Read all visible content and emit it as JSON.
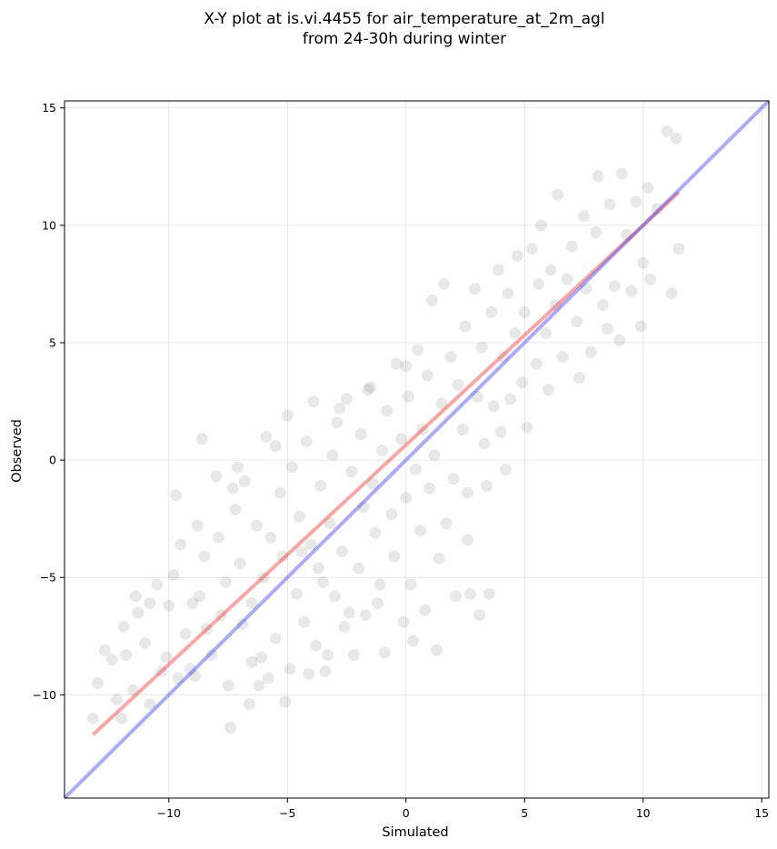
{
  "chart_data": {
    "type": "scatter",
    "title": "X-Y plot at is.vi.4455 for air_temperature_at_2m_agl",
    "subtitle": "from 24-30h during winter",
    "xlabel": "Simulated",
    "ylabel": "Observed",
    "xlim": [
      -14.4,
      15.3
    ],
    "ylim": [
      -14.4,
      15.3
    ],
    "xticks": [
      -10,
      -5,
      0,
      5,
      10,
      15
    ],
    "yticks": [
      -10,
      -5,
      0,
      5,
      10,
      15
    ],
    "xtick_labels": [
      "−10",
      "−5",
      "0",
      "5",
      "10",
      "15"
    ],
    "ytick_labels": [
      "−10",
      "−5",
      "0",
      "5",
      "10",
      "15"
    ],
    "grid": true,
    "marker_color": "#000000",
    "marker_opacity": 0.09,
    "points": [
      [
        -13.2,
        -11.0
      ],
      [
        -13.0,
        -9.5
      ],
      [
        -12.4,
        -8.5
      ],
      [
        -12.2,
        -10.2
      ],
      [
        -12.0,
        -11.0
      ],
      [
        -11.8,
        -8.3
      ],
      [
        -11.5,
        -9.8
      ],
      [
        -11.3,
        -6.5
      ],
      [
        -11.0,
        -7.8
      ],
      [
        -10.8,
        -10.4
      ],
      [
        -10.5,
        -5.3
      ],
      [
        -10.3,
        -9.0
      ],
      [
        -10.0,
        -6.2
      ],
      [
        -9.8,
        -4.9
      ],
      [
        -9.7,
        -1.5
      ],
      [
        -9.5,
        -3.6
      ],
      [
        -9.3,
        -7.4
      ],
      [
        -9.1,
        -8.9
      ],
      [
        -9.0,
        -6.1
      ],
      [
        -8.8,
        -2.8
      ],
      [
        -8.7,
        -5.8
      ],
      [
        -8.5,
        -4.1
      ],
      [
        -8.4,
        -7.2
      ],
      [
        -8.2,
        -8.3
      ],
      [
        -8.0,
        -0.7
      ],
      [
        -7.9,
        -3.3
      ],
      [
        -7.8,
        -6.6
      ],
      [
        -7.6,
        -5.2
      ],
      [
        -7.5,
        -9.6
      ],
      [
        -7.4,
        -11.4
      ],
      [
        -7.2,
        -2.1
      ],
      [
        -7.0,
        -4.4
      ],
      [
        -6.9,
        -7.0
      ],
      [
        -6.8,
        -0.9
      ],
      [
        -6.6,
        -10.4
      ],
      [
        -6.5,
        -6.1
      ],
      [
        -6.3,
        -2.8
      ],
      [
        -6.1,
        -8.4
      ],
      [
        -6.0,
        -5.0
      ],
      [
        -5.9,
        1.0
      ],
      [
        -5.7,
        -3.3
      ],
      [
        -5.5,
        -7.6
      ],
      [
        -5.3,
        -1.4
      ],
      [
        -5.2,
        -4.1
      ],
      [
        -5.1,
        -10.3
      ],
      [
        -5.0,
        1.9
      ],
      [
        -4.9,
        -8.9
      ],
      [
        -4.8,
        -0.3
      ],
      [
        -4.6,
        -5.7
      ],
      [
        -4.5,
        -2.4
      ],
      [
        -4.3,
        -6.9
      ],
      [
        -4.2,
        0.8
      ],
      [
        -4.0,
        -3.6
      ],
      [
        -3.9,
        2.5
      ],
      [
        -3.8,
        -7.9
      ],
      [
        -3.6,
        -1.1
      ],
      [
        -3.5,
        -5.2
      ],
      [
        -3.3,
        -8.3
      ],
      [
        -3.2,
        -2.7
      ],
      [
        -3.1,
        0.2
      ],
      [
        -3.0,
        -5.8
      ],
      [
        -2.9,
        1.6
      ],
      [
        -2.7,
        -3.9
      ],
      [
        -2.6,
        -7.1
      ],
      [
        -2.5,
        2.6
      ],
      [
        -2.3,
        -0.5
      ],
      [
        -2.2,
        -8.3
      ],
      [
        -2.0,
        -4.6
      ],
      [
        -1.9,
        1.1
      ],
      [
        -1.8,
        -2.0
      ],
      [
        -1.7,
        -6.6
      ],
      [
        -1.5,
        3.1
      ],
      [
        -1.4,
        -1.0
      ],
      [
        -1.3,
        -3.1
      ],
      [
        -1.1,
        -5.3
      ],
      [
        -1.0,
        0.4
      ],
      [
        -0.9,
        -8.2
      ],
      [
        -0.8,
        2.1
      ],
      [
        -0.6,
        -2.3
      ],
      [
        -0.5,
        -4.1
      ],
      [
        -0.4,
        4.1
      ],
      [
        -0.2,
        0.9
      ],
      [
        -0.1,
        -6.9
      ],
      [
        0.0,
        -1.6
      ],
      [
        0.1,
        2.7
      ],
      [
        0.2,
        -5.3
      ],
      [
        0.4,
        -0.4
      ],
      [
        0.5,
        4.7
      ],
      [
        0.6,
        -3.0
      ],
      [
        0.7,
        1.3
      ],
      [
        0.8,
        -6.4
      ],
      [
        0.9,
        3.6
      ],
      [
        1.0,
        -1.2
      ],
      [
        1.1,
        6.8
      ],
      [
        1.2,
        0.2
      ],
      [
        1.4,
        -4.2
      ],
      [
        1.5,
        2.4
      ],
      [
        1.6,
        7.5
      ],
      [
        1.7,
        -2.7
      ],
      [
        1.9,
        4.4
      ],
      [
        2.0,
        -0.8
      ],
      [
        2.1,
        -5.8
      ],
      [
        2.2,
        3.2
      ],
      [
        2.4,
        1.3
      ],
      [
        2.5,
        5.7
      ],
      [
        2.6,
        -1.4
      ],
      [
        2.7,
        -5.7
      ],
      [
        2.9,
        7.3
      ],
      [
        3.0,
        2.7
      ],
      [
        3.1,
        -6.6
      ],
      [
        3.2,
        4.8
      ],
      [
        3.3,
        0.7
      ],
      [
        3.5,
        -5.7
      ],
      [
        3.6,
        6.3
      ],
      [
        3.7,
        2.3
      ],
      [
        3.9,
        8.1
      ],
      [
        4.0,
        1.2
      ],
      [
        4.1,
        4.4
      ],
      [
        4.3,
        7.1
      ],
      [
        4.4,
        2.6
      ],
      [
        4.6,
        5.4
      ],
      [
        4.7,
        8.7
      ],
      [
        4.9,
        3.3
      ],
      [
        5.0,
        6.3
      ],
      [
        5.1,
        1.4
      ],
      [
        5.3,
        9.0
      ],
      [
        5.5,
        4.1
      ],
      [
        5.6,
        7.5
      ],
      [
        5.7,
        10.0
      ],
      [
        5.9,
        5.4
      ],
      [
        6.0,
        3.0
      ],
      [
        6.1,
        8.1
      ],
      [
        6.3,
        6.6
      ],
      [
        6.4,
        11.3
      ],
      [
        6.6,
        4.4
      ],
      [
        6.8,
        7.7
      ],
      [
        7.0,
        9.1
      ],
      [
        7.2,
        5.9
      ],
      [
        7.3,
        3.5
      ],
      [
        7.5,
        10.4
      ],
      [
        7.6,
        7.3
      ],
      [
        7.8,
        4.6
      ],
      [
        8.0,
        9.7
      ],
      [
        8.1,
        12.1
      ],
      [
        8.3,
        6.6
      ],
      [
        8.5,
        5.6
      ],
      [
        8.6,
        10.9
      ],
      [
        8.8,
        7.4
      ],
      [
        9.0,
        5.1
      ],
      [
        9.1,
        12.2
      ],
      [
        9.3,
        9.6
      ],
      [
        9.5,
        7.2
      ],
      [
        9.7,
        11.0
      ],
      [
        9.9,
        5.7
      ],
      [
        10.0,
        8.4
      ],
      [
        10.2,
        11.6
      ],
      [
        10.3,
        7.7
      ],
      [
        10.6,
        10.7
      ],
      [
        11.0,
        14.0
      ],
      [
        11.2,
        7.1
      ],
      [
        11.4,
        13.7
      ],
      [
        11.5,
        9.0
      ],
      [
        -12.7,
        -8.1
      ],
      [
        -11.4,
        -5.8
      ],
      [
        -10.1,
        -8.4
      ],
      [
        -8.9,
        -9.2
      ],
      [
        -7.3,
        -1.2
      ],
      [
        -6.2,
        -9.6
      ],
      [
        -4.1,
        -9.1
      ],
      [
        -3.4,
        -9.0
      ],
      [
        -1.2,
        -6.1
      ],
      [
        0.3,
        -7.7
      ],
      [
        1.3,
        -8.1
      ],
      [
        2.6,
        -3.4
      ],
      [
        3.4,
        -1.1
      ],
      [
        4.2,
        -0.4
      ],
      [
        -8.6,
        0.9
      ],
      [
        -7.1,
        -0.3
      ],
      [
        -5.5,
        0.6
      ],
      [
        -2.8,
        2.2
      ],
      [
        -1.6,
        3.0
      ],
      [
        0.0,
        4.0
      ],
      [
        -6.5,
        -8.6
      ],
      [
        -5.8,
        -9.3
      ],
      [
        -9.6,
        -9.3
      ],
      [
        -10.8,
        -6.1
      ],
      [
        -11.9,
        -7.1
      ],
      [
        -2.4,
        -6.5
      ],
      [
        -3.7,
        -4.6
      ],
      [
        -4.4,
        -3.9
      ]
    ],
    "series": [
      {
        "kind": "ols-fit",
        "color": "#f03c3c",
        "x": [
          -13.2,
          11.5
        ],
        "y": [
          -11.7,
          11.4
        ]
      },
      {
        "kind": "one-to-one",
        "color": "#4646e6",
        "x": [
          -14.4,
          15.3
        ],
        "y": [
          -14.4,
          15.3
        ]
      }
    ]
  }
}
